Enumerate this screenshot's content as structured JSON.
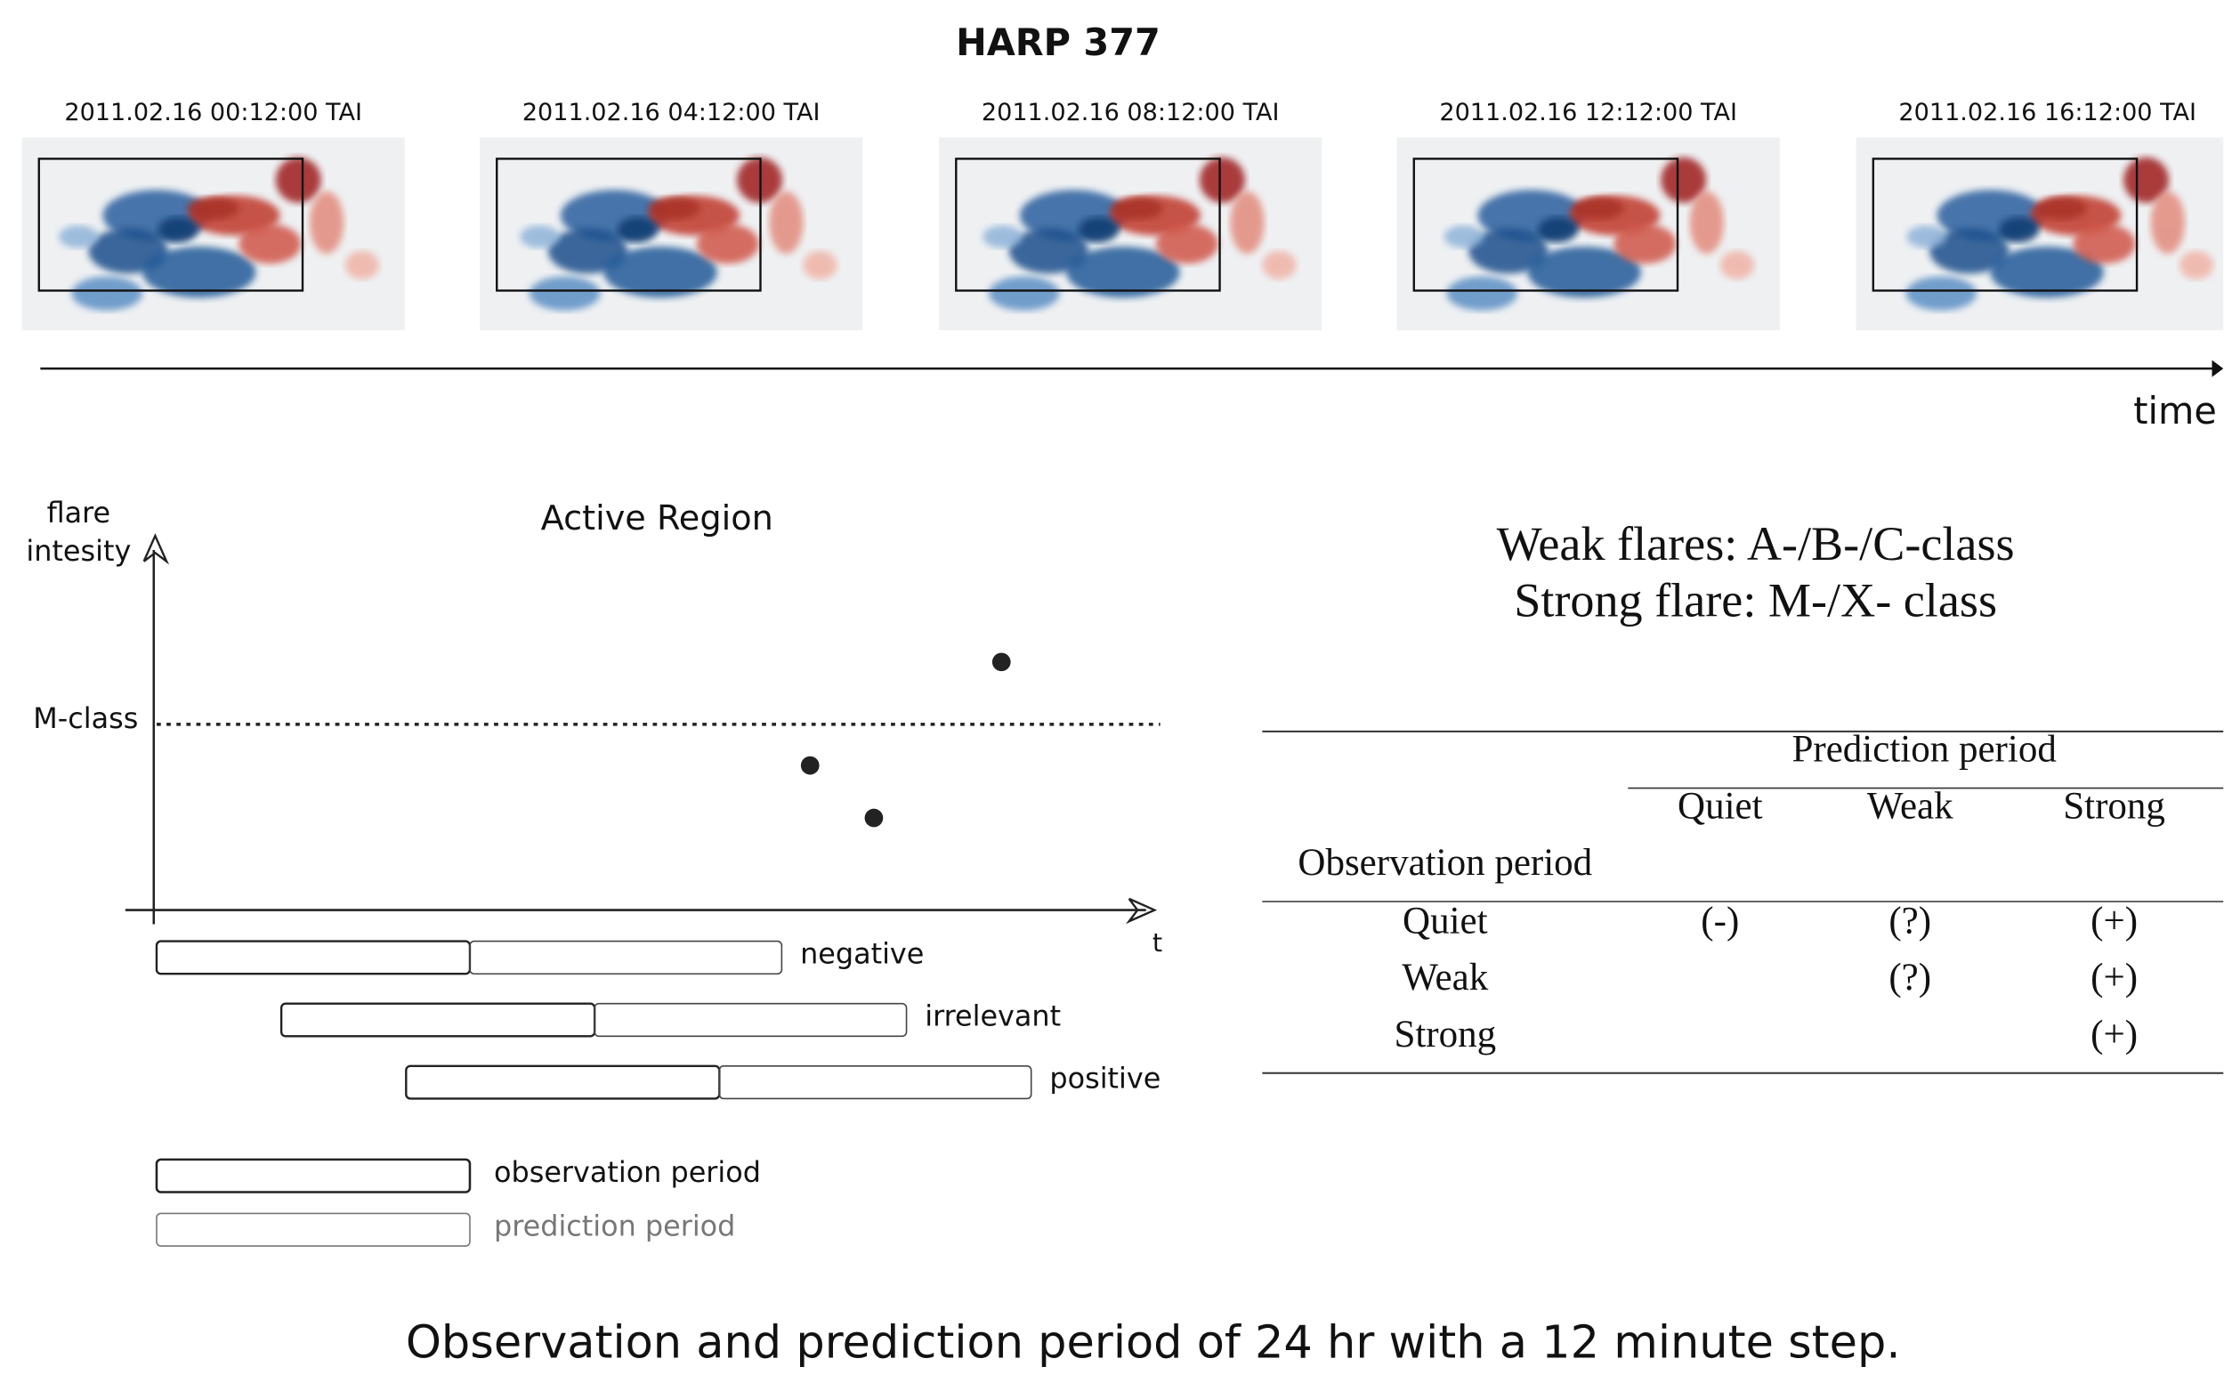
{
  "title": "HARP 377",
  "frames": [
    "2011.02.16 00:12:00 TAI",
    "2011.02.16 04:12:00 TAI",
    "2011.02.16 08:12:00 TAI",
    "2011.02.16 12:12:00 TAI",
    "2011.02.16 16:12:00 TAI"
  ],
  "timeline_label": "time",
  "sketch": {
    "title": "Active Region",
    "y_axis_label": [
      "flare",
      "intesity"
    ],
    "x_axis_label": "t",
    "threshold_label": "M-class",
    "cases": [
      "negative",
      "irrelevant",
      "positive"
    ],
    "legend": [
      "observation period",
      "prediction period"
    ]
  },
  "flare_classes": [
    "Weak flares: A-/B-/C-class",
    "Strong flare: M-/X- class"
  ],
  "table": {
    "column_group": "Prediction period",
    "columns": [
      "Quiet",
      "Weak",
      "Strong"
    ],
    "row_header": "Observation period",
    "rows": [
      {
        "label": "Quiet",
        "values": [
          "(-)",
          "(?)",
          "(+)"
        ]
      },
      {
        "label": "Weak",
        "values": [
          "(?)",
          "(+)"
        ]
      },
      {
        "label": "Strong",
        "values": [
          "(+)"
        ]
      }
    ]
  },
  "caption": "Observation and prediction period of 24 hr with a 12 minute step."
}
